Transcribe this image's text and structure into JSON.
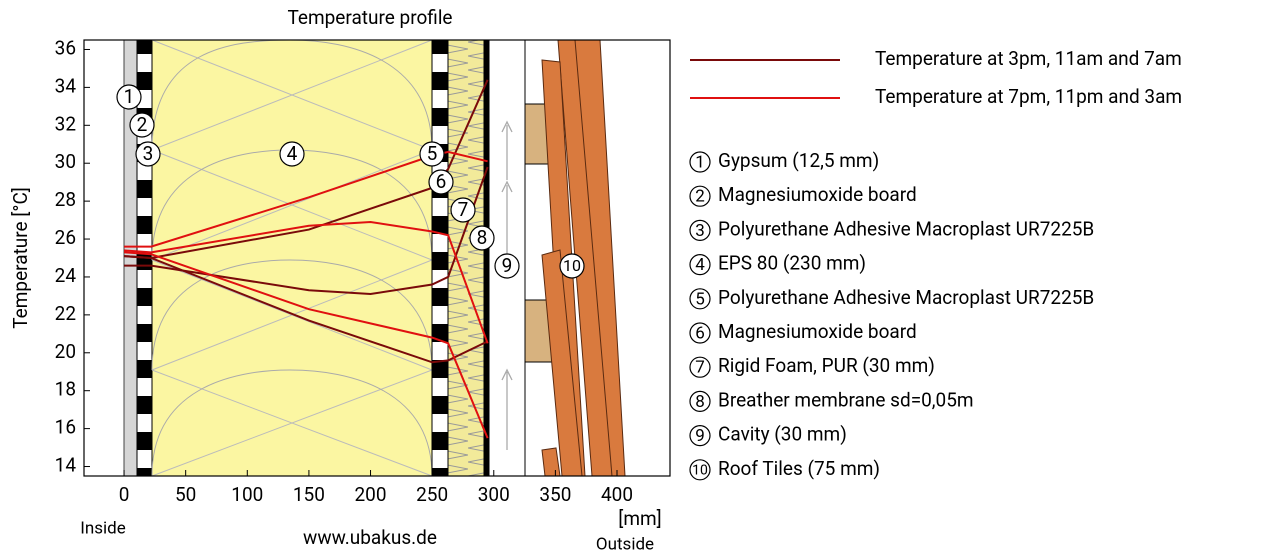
{
  "chart_data": {
    "type": "line",
    "title": "Temperature profile",
    "y_label": "Temperature  [°C]",
    "x_unit": "[mm]",
    "inside_label": "Inside",
    "outside_label": "Outside",
    "source": "www.ubakus.de",
    "xlim": [
      -32.5,
      443
    ],
    "ylim": [
      13.5,
      36.5
    ],
    "xticks": [
      0,
      50,
      100,
      150,
      200,
      250,
      300,
      350,
      400
    ],
    "yticks": [
      14,
      16,
      18,
      20,
      22,
      24,
      26,
      28,
      30,
      32,
      34,
      36
    ],
    "grid": false,
    "series": [
      {
        "name": "Temperature at 3pm, 11am and 7am",
        "color": "#7a0a0a",
        "lines": [
          {
            "x": [
              0,
              22,
              150,
              250,
              263,
              295
            ],
            "values": [
              25.1,
              25.0,
              26.5,
              28.7,
              29.7,
              34.4
            ]
          },
          {
            "x": [
              0,
              22,
              150,
              200,
              250,
              263,
              295
            ],
            "values": [
              24.6,
              24.6,
              23.3,
              23.1,
              23.6,
              24.0,
              29.8
            ]
          },
          {
            "x": [
              0,
              22,
              150,
              250,
              263,
              295
            ],
            "values": [
              25.1,
              25.0,
              21.7,
              19.5,
              19.6,
              20.6
            ]
          }
        ]
      },
      {
        "name": "Temperature at 7pm, 11pm and 3am",
        "color": "#e01010",
        "lines": [
          {
            "x": [
              0,
              22,
              150,
              250,
              263,
              295
            ],
            "values": [
              25.6,
              25.6,
              28.2,
              30.4,
              30.6,
              30.1
            ]
          },
          {
            "x": [
              0,
              22,
              150,
              200,
              250,
              263,
              295
            ],
            "values": [
              25.4,
              25.3,
              26.7,
              26.9,
              26.4,
              26.2,
              20.5
            ]
          },
          {
            "x": [
              0,
              22,
              150,
              250,
              263,
              295
            ],
            "values": [
              25.3,
              25.2,
              22.3,
              20.8,
              20.5,
              15.5
            ]
          }
        ]
      }
    ],
    "layers": [
      {
        "number": "1",
        "name": "Gypsum (12,5 mm)"
      },
      {
        "number": "2",
        "name": "Magnesiumoxide board"
      },
      {
        "number": "3",
        "name": "Polyurethane Adhesive Macroplast UR7225B"
      },
      {
        "number": "4",
        "name": "EPS 80 (230 mm)"
      },
      {
        "number": "5",
        "name": "Polyurethane Adhesive Macroplast UR7225B"
      },
      {
        "number": "6",
        "name": "Magnesiumoxide board"
      },
      {
        "number": "7",
        "name": "Rigid Foam, PUR (30 mm)"
      },
      {
        "number": "8",
        "name": "Breather membrane sd=0,05m"
      },
      {
        "number": "9",
        "name": "Cavity (30 mm)"
      },
      {
        "number": "10",
        "name": "Roof Tiles (75 mm)"
      }
    ]
  }
}
